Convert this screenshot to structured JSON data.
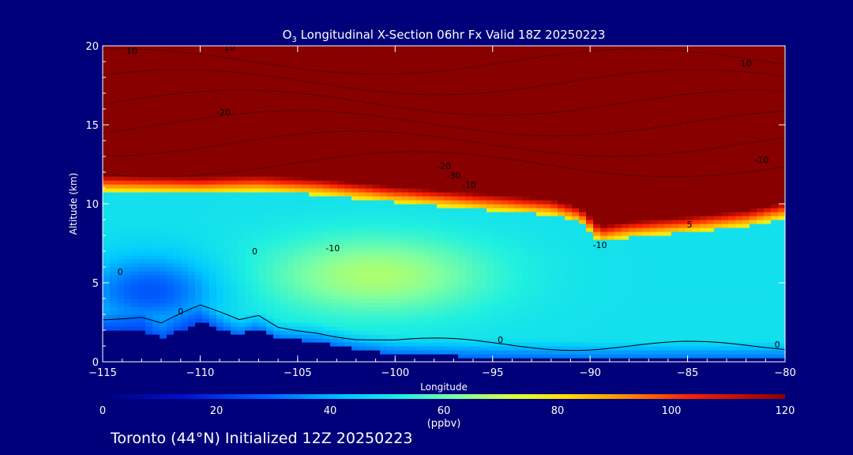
{
  "chart_data": {
    "type": "heatmap",
    "title_main": "O",
    "title_sub": "3",
    "title_rest": " Longitudinal X-Section 06hr  Fx Valid 18Z 20250223",
    "xlabel": "Longitude",
    "ylabel": "Altitude (km)",
    "xlim": [
      -115,
      -80
    ],
    "ylim": [
      0,
      20
    ],
    "x_ticks": [
      -115,
      -110,
      -105,
      -100,
      -95,
      -90,
      -85,
      -80
    ],
    "x_tick_labels": [
      "−115",
      "−110",
      "−105",
      "−100",
      "−95",
      "−90",
      "−85",
      "−80"
    ],
    "y_ticks": [
      0,
      5,
      10,
      15,
      20
    ],
    "y_tick_labels": [
      "0",
      "5",
      "10",
      "15",
      "20"
    ],
    "colorbar": {
      "min": 0,
      "max": 120,
      "ticks": [
        0,
        20,
        40,
        60,
        80,
        100,
        120
      ],
      "tick_labels": [
        "0",
        "20",
        "40",
        "60",
        "80",
        "100",
        "120"
      ],
      "unit": "(ppbv)"
    },
    "field": {
      "description_units": "ppbv",
      "tropopause_km": [
        [
          -115,
          11.5
        ],
        [
          -110,
          11.4
        ],
        [
          -107,
          11.5
        ],
        [
          -104,
          11.3
        ],
        [
          -100,
          10.8
        ],
        [
          -96,
          10.4
        ],
        [
          -92,
          10.0
        ],
        [
          -90.5,
          9.5
        ],
        [
          -89.5,
          8.3
        ],
        [
          -88,
          8.6
        ],
        [
          -85,
          8.9
        ],
        [
          -82,
          9.3
        ],
        [
          -80,
          9.8
        ]
      ],
      "terrain_km": [
        [
          -115,
          2.1
        ],
        [
          -113,
          2.0
        ],
        [
          -112,
          1.5
        ],
        [
          -110,
          2.5
        ],
        [
          -108,
          1.7
        ],
        [
          -107,
          2.1
        ],
        [
          -106,
          1.5
        ],
        [
          -104,
          1.3
        ],
        [
          -102,
          0.8
        ],
        [
          -100,
          0.5
        ],
        [
          -95,
          0.3
        ],
        [
          -90,
          0.2
        ],
        [
          -85,
          0.2
        ],
        [
          -80,
          0.2
        ]
      ],
      "mid_max_center": [
        -101,
        5.5
      ],
      "mid_max_value": 65,
      "low_min_center": [
        -112.5,
        4.5
      ],
      "low_min_value": 25
    },
    "contour_labels": [
      {
        "text": "10",
        "lon": -113.5,
        "alt": 19.5
      },
      {
        "text": "10",
        "lon": -108.5,
        "alt": 19.7
      },
      {
        "text": "-20",
        "lon": -108.8,
        "alt": 15.6
      },
      {
        "text": "10",
        "lon": -82,
        "alt": 18.7
      },
      {
        "text": "-20",
        "lon": -97.5,
        "alt": 12.2
      },
      {
        "text": "-30",
        "lon": -97.0,
        "alt": 11.6
      },
      {
        "text": "-10",
        "lon": -96.2,
        "alt": 11.0
      },
      {
        "text": "-10",
        "lon": -81.2,
        "alt": 12.6
      },
      {
        "text": "-10",
        "lon": -103.2,
        "alt": 7.0
      },
      {
        "text": "0",
        "lon": -107.2,
        "alt": 6.8
      },
      {
        "text": "0",
        "lon": -114.1,
        "alt": 5.5
      },
      {
        "text": "0",
        "lon": -111.0,
        "alt": 3.0
      },
      {
        "text": "-10",
        "lon": -89.5,
        "alt": 7.2
      },
      {
        "text": "5",
        "lon": -84.9,
        "alt": 8.5
      },
      {
        "text": "0",
        "lon": -94.6,
        "alt": 1.2
      },
      {
        "text": "0",
        "lon": -80.4,
        "alt": 0.9
      }
    ]
  },
  "footer": {
    "location": "Toronto (44°N) Initialized 12Z 20250223"
  }
}
